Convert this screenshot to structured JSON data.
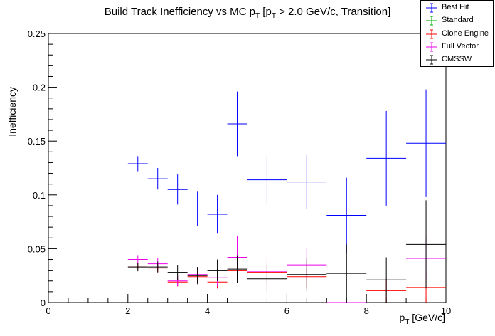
{
  "chart_data": {
    "type": "scatter",
    "title_main": "Build Track Inefficiency vs MC p",
    "title_sub": "T",
    "title_mid": " [p",
    "title_sub2": "T",
    "title_end": " > 2.0 GeV/c, Transition]",
    "ylabel": "Inefficiency",
    "xlabel_main": "p",
    "xlabel_sub": "T",
    "xlabel_end": " [GeV/c]",
    "xlim": [
      0,
      10
    ],
    "ylim": [
      0,
      0.25
    ],
    "x_ticks": [
      "0",
      "2",
      "4",
      "6",
      "8",
      "10"
    ],
    "y_ticks": [
      "0",
      "0.05",
      "0.1",
      "0.15",
      "0.2",
      "0.25"
    ],
    "legend_position": "top-right",
    "series": [
      {
        "name": "Best Hit",
        "color": "#0000ff",
        "points": [
          {
            "x": 2.25,
            "xerr": 0.25,
            "y": 0.129,
            "yerr": 0.007
          },
          {
            "x": 2.75,
            "xerr": 0.25,
            "y": 0.115,
            "yerr": 0.01
          },
          {
            "x": 3.25,
            "xerr": 0.25,
            "y": 0.105,
            "yerr": 0.014
          },
          {
            "x": 3.75,
            "xerr": 0.25,
            "y": 0.087,
            "yerr": 0.016
          },
          {
            "x": 4.25,
            "xerr": 0.25,
            "y": 0.082,
            "yerr": 0.018
          },
          {
            "x": 4.75,
            "xerr": 0.25,
            "y": 0.166,
            "yerr": 0.03
          },
          {
            "x": 5.5,
            "xerr": 0.5,
            "y": 0.114,
            "yerr": 0.022
          },
          {
            "x": 6.5,
            "xerr": 0.5,
            "y": 0.112,
            "yerr": 0.025
          },
          {
            "x": 7.5,
            "xerr": 0.5,
            "y": 0.081,
            "yerr": 0.035
          },
          {
            "x": 8.5,
            "xerr": 0.5,
            "y": 0.134,
            "yerr": 0.044
          },
          {
            "x": 9.5,
            "xerr": 0.5,
            "y": 0.148,
            "yerr": 0.05
          }
        ]
      },
      {
        "name": "Standard",
        "color": "#00aa00",
        "points": []
      },
      {
        "name": "Clone Engine",
        "color": "#ff0000",
        "points": [
          {
            "x": 2.25,
            "xerr": 0.25,
            "y": 0.034,
            "yerr": 0.003
          },
          {
            "x": 2.75,
            "xerr": 0.25,
            "y": 0.032,
            "yerr": 0.004
          },
          {
            "x": 3.25,
            "xerr": 0.25,
            "y": 0.019,
            "yerr": 0.004
          },
          {
            "x": 3.75,
            "xerr": 0.25,
            "y": 0.024,
            "yerr": 0.006
          },
          {
            "x": 4.25,
            "xerr": 0.25,
            "y": 0.019,
            "yerr": 0.006
          },
          {
            "x": 4.75,
            "xerr": 0.25,
            "y": 0.03,
            "yerr": 0.01
          },
          {
            "x": 5.5,
            "xerr": 0.5,
            "y": 0.028,
            "yerr": 0.008
          },
          {
            "x": 6.5,
            "xerr": 0.5,
            "y": 0.024,
            "yerr": 0.01
          },
          {
            "x": 8.5,
            "xerr": 0.5,
            "y": 0.011,
            "yerr": 0.011
          },
          {
            "x": 9.5,
            "xerr": 0.5,
            "y": 0.014,
            "yerr": 0.014
          }
        ]
      },
      {
        "name": "Full Vector",
        "color": "#ee00ee",
        "points": [
          {
            "x": 2.25,
            "xerr": 0.25,
            "y": 0.04,
            "yerr": 0.004
          },
          {
            "x": 2.75,
            "xerr": 0.25,
            "y": 0.036,
            "yerr": 0.005
          },
          {
            "x": 3.25,
            "xerr": 0.25,
            "y": 0.02,
            "yerr": 0.005
          },
          {
            "x": 3.75,
            "xerr": 0.25,
            "y": 0.026,
            "yerr": 0.007
          },
          {
            "x": 4.25,
            "xerr": 0.25,
            "y": 0.023,
            "yerr": 0.008
          },
          {
            "x": 4.75,
            "xerr": 0.25,
            "y": 0.042,
            "yerr": 0.02
          },
          {
            "x": 5.5,
            "xerr": 0.5,
            "y": 0.029,
            "yerr": 0.013
          },
          {
            "x": 6.5,
            "xerr": 0.5,
            "y": 0.035,
            "yerr": 0.015
          },
          {
            "x": 7.5,
            "xerr": 0.5,
            "y": 0.0,
            "yerr": 0.0
          },
          {
            "x": 9.5,
            "xerr": 0.5,
            "y": 0.041,
            "yerr": 0.02
          }
        ]
      },
      {
        "name": "CMSSW",
        "color": "#000000",
        "points": [
          {
            "x": 2.25,
            "xerr": 0.25,
            "y": 0.033,
            "yerr": 0.004
          },
          {
            "x": 2.75,
            "xerr": 0.25,
            "y": 0.033,
            "yerr": 0.005
          },
          {
            "x": 3.25,
            "xerr": 0.25,
            "y": 0.028,
            "yerr": 0.007
          },
          {
            "x": 3.75,
            "xerr": 0.25,
            "y": 0.025,
            "yerr": 0.008
          },
          {
            "x": 4.25,
            "xerr": 0.25,
            "y": 0.03,
            "yerr": 0.01
          },
          {
            "x": 4.75,
            "xerr": 0.25,
            "y": 0.031,
            "yerr": 0.013
          },
          {
            "x": 5.5,
            "xerr": 0.5,
            "y": 0.022,
            "yerr": 0.013
          },
          {
            "x": 6.5,
            "xerr": 0.5,
            "y": 0.026,
            "yerr": 0.015
          },
          {
            "x": 7.5,
            "xerr": 0.5,
            "y": 0.027,
            "yerr": 0.027
          },
          {
            "x": 8.5,
            "xerr": 0.5,
            "y": 0.021,
            "yerr": 0.021
          },
          {
            "x": 9.5,
            "xerr": 0.5,
            "y": 0.054,
            "yerr": 0.041
          }
        ]
      }
    ]
  }
}
